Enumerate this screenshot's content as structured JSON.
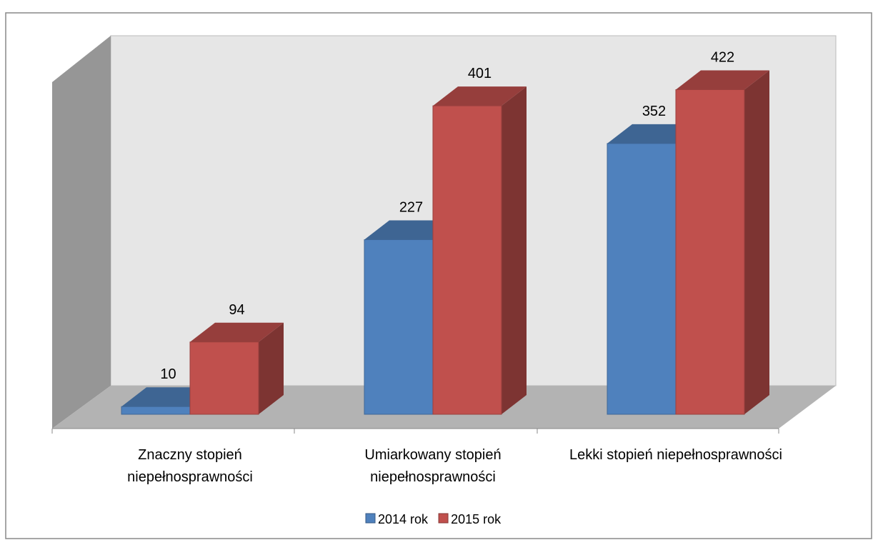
{
  "chart_data": {
    "type": "bar3d",
    "categories": [
      "Znaczny stopień niepełnosprawności",
      "Umiarkowany stopień niepełnosprawności",
      "Lekki stopień niepełnosprawności"
    ],
    "series": [
      {
        "name": "2014 rok",
        "color": "#4f81bd",
        "values": [
          10,
          227,
          352
        ]
      },
      {
        "name": "2015 rok",
        "color": "#c0504d",
        "values": [
          94,
          401,
          422
        ]
      }
    ],
    "legend": "bottom"
  }
}
